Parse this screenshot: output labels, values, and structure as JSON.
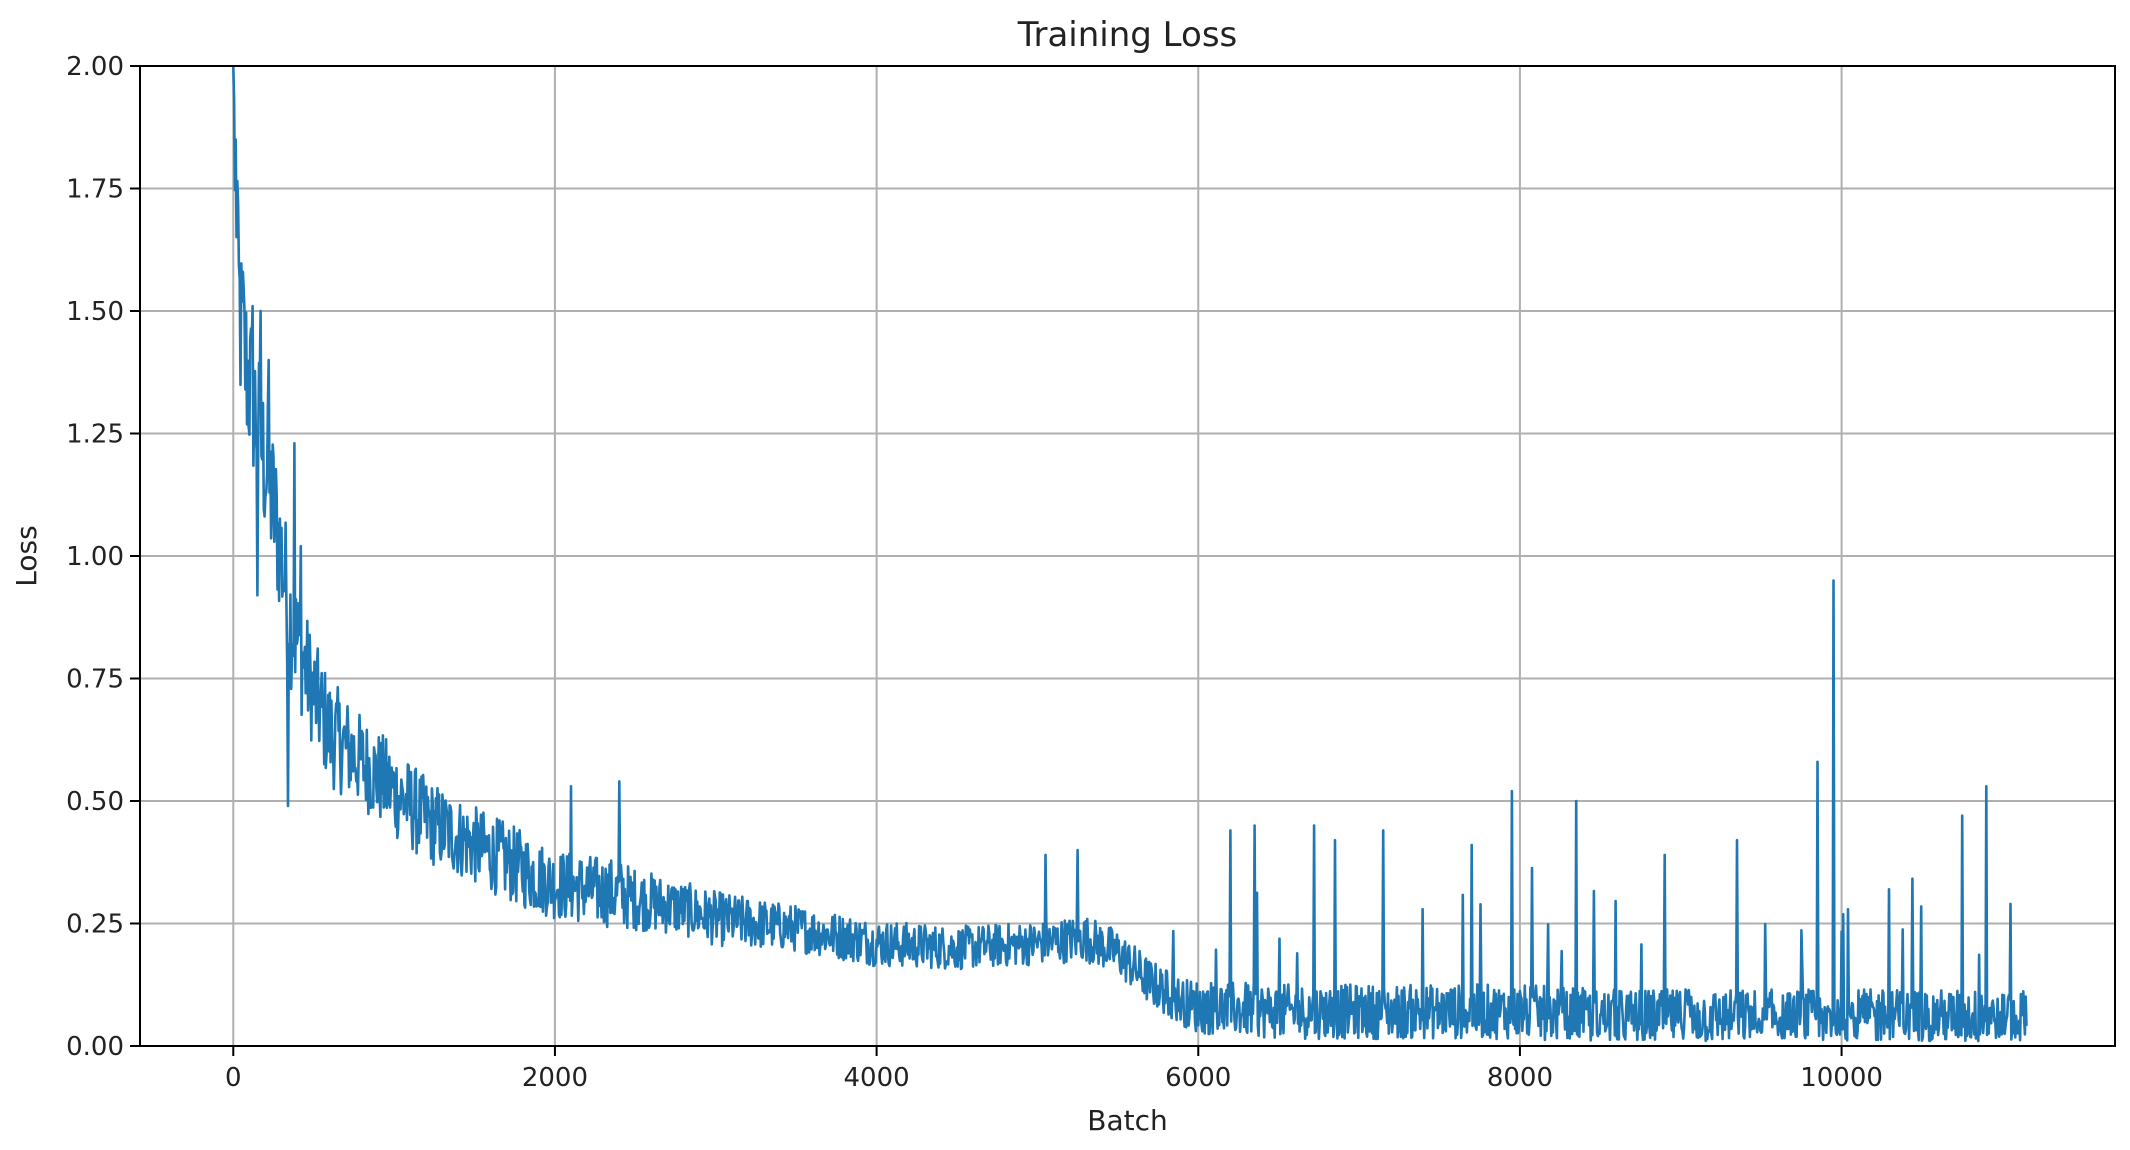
{
  "chart_data": {
    "type": "line",
    "title": "Training Loss",
    "xlabel": "Batch",
    "ylabel": "Loss",
    "xlim": [
      -580,
      11700
    ],
    "ylim": [
      0,
      2.0
    ],
    "xticks": [
      0,
      2000,
      4000,
      6000,
      8000,
      10000
    ],
    "yticks": [
      0.0,
      0.25,
      0.5,
      0.75,
      1.0,
      1.25,
      1.5,
      1.75,
      2.0
    ],
    "xtick_labels": [
      "0",
      "2000",
      "4000",
      "6000",
      "8000",
      "10000"
    ],
    "ytick_labels": [
      "0.00",
      "0.25",
      "0.50",
      "0.75",
      "1.00",
      "1.25",
      "1.50",
      "1.75",
      "2.00"
    ],
    "grid": true,
    "legend": "none",
    "series": [
      {
        "color": "#1f77b4",
        "x": [
          0,
          20,
          50,
          100,
          150,
          200,
          250,
          300,
          350,
          400,
          500,
          600,
          800,
          1000,
          1200,
          1500,
          1800,
          2000,
          2200,
          2400,
          2500,
          2800,
          3000,
          3500,
          4000,
          4500,
          5000,
          5300,
          5500,
          5700,
          5900,
          6000,
          6500,
          7000,
          7500,
          8000,
          8500,
          9000,
          9500,
          10000,
          10500,
          11000,
          11150
        ],
        "y": [
          2.0,
          1.6,
          1.45,
          1.35,
          1.28,
          1.18,
          1.1,
          1.0,
          0.88,
          0.82,
          0.72,
          0.64,
          0.58,
          0.52,
          0.46,
          0.41,
          0.36,
          0.33,
          0.32,
          0.31,
          0.3,
          0.28,
          0.26,
          0.24,
          0.21,
          0.2,
          0.21,
          0.22,
          0.19,
          0.13,
          0.09,
          0.08,
          0.07,
          0.07,
          0.07,
          0.07,
          0.06,
          0.06,
          0.06,
          0.06,
          0.06,
          0.06,
          0.06
        ],
        "noise": [
          0.05,
          0.12,
          0.12,
          0.11,
          0.1,
          0.1,
          0.1,
          0.09,
          0.09,
          0.08,
          0.07,
          0.07,
          0.06,
          0.06,
          0.055,
          0.05,
          0.05,
          0.045,
          0.045,
          0.045,
          0.04,
          0.035,
          0.035,
          0.03,
          0.03,
          0.028,
          0.028,
          0.03,
          0.03,
          0.03,
          0.03,
          0.035,
          0.035,
          0.035,
          0.035,
          0.035,
          0.035,
          0.035,
          0.035,
          0.035,
          0.035,
          0.035,
          0.035
        ],
        "spikes": [
          {
            "x": 0,
            "y": 2.0
          },
          {
            "x": 15,
            "y": 1.85
          },
          {
            "x": 30,
            "y": 1.72
          },
          {
            "x": 60,
            "y": 1.58
          },
          {
            "x": 120,
            "y": 1.51
          },
          {
            "x": 170,
            "y": 1.5
          },
          {
            "x": 220,
            "y": 1.4
          },
          {
            "x": 380,
            "y": 1.23
          },
          {
            "x": 420,
            "y": 1.02
          },
          {
            "x": 340,
            "y": 0.49
          },
          {
            "x": 150,
            "y": 0.92
          },
          {
            "x": 2100,
            "y": 0.53
          },
          {
            "x": 2400,
            "y": 0.54
          },
          {
            "x": 5050,
            "y": 0.39
          },
          {
            "x": 5250,
            "y": 0.4
          },
          {
            "x": 6200,
            "y": 0.44
          },
          {
            "x": 6350,
            "y": 0.45
          },
          {
            "x": 6720,
            "y": 0.45
          },
          {
            "x": 6850,
            "y": 0.42
          },
          {
            "x": 7150,
            "y": 0.44
          },
          {
            "x": 7700,
            "y": 0.41
          },
          {
            "x": 7950,
            "y": 0.52
          },
          {
            "x": 8350,
            "y": 0.5
          },
          {
            "x": 8900,
            "y": 0.39
          },
          {
            "x": 9350,
            "y": 0.42
          },
          {
            "x": 9850,
            "y": 0.58
          },
          {
            "x": 9950,
            "y": 0.95
          },
          {
            "x": 10750,
            "y": 0.47
          },
          {
            "x": 10900,
            "y": 0.53
          },
          {
            "x": 11050,
            "y": 0.29
          }
        ]
      }
    ]
  }
}
